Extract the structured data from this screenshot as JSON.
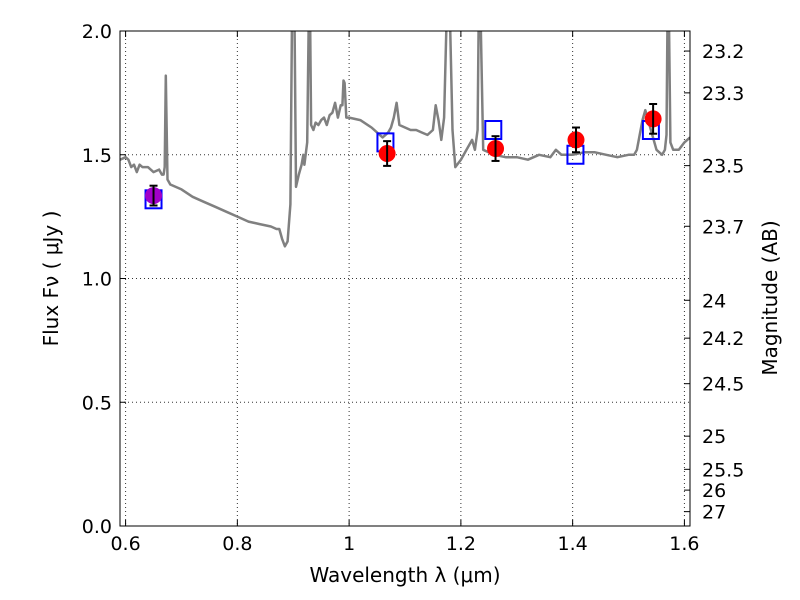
{
  "chart_data": {
    "type": "line",
    "title": "",
    "xlabel": "Wavelength  λ (μm)",
    "ylabel": "Flux  Fν  ( μJy )",
    "ylabel_right": "Magnitude (AB)",
    "xlim": [
      0.59,
      1.61
    ],
    "ylim": [
      0.0,
      2.0
    ],
    "grid": true,
    "x_ticks": [
      {
        "value": 0.6,
        "label": "0.6"
      },
      {
        "value": 0.8,
        "label": "0.8"
      },
      {
        "value": 1.0,
        "label": "1"
      },
      {
        "value": 1.2,
        "label": "1.2"
      },
      {
        "value": 1.4,
        "label": "1.4"
      },
      {
        "value": 1.6,
        "label": "1.6"
      }
    ],
    "y_ticks": [
      {
        "value": 0.0,
        "label": "0.0"
      },
      {
        "value": 0.5,
        "label": "0.5"
      },
      {
        "value": 1.0,
        "label": "1.0"
      },
      {
        "value": 1.5,
        "label": "1.5"
      },
      {
        "value": 2.0,
        "label": "2.0"
      }
    ],
    "mag_ticks": [
      {
        "label": "23.2",
        "flux": 1.919
      },
      {
        "label": "23.3",
        "flux": 1.75
      },
      {
        "label": "23.5",
        "flux": 1.456
      },
      {
        "label": "23.7",
        "flux": 1.211
      },
      {
        "label": "24",
        "flux": 0.912
      },
      {
        "label": "24.2",
        "flux": 0.759
      },
      {
        "label": "24.5",
        "flux": 0.575
      },
      {
        "label": "25",
        "flux": 0.363
      },
      {
        "label": "25.5",
        "flux": 0.229
      },
      {
        "label": "26",
        "flux": 0.145
      },
      {
        "label": "27",
        "flux": 0.058
      }
    ],
    "colors": {
      "spectrum": "#808080",
      "model_box": "#0000ff",
      "observed": "#ff0000",
      "observed_first": "#a000c8",
      "errorbar": "#000000"
    },
    "series": [
      {
        "kind": "spectrum",
        "x": [
          0.59,
          0.6,
          0.605,
          0.61,
          0.615,
          0.62,
          0.625,
          0.63,
          0.64,
          0.65,
          0.66,
          0.665,
          0.668,
          0.67,
          0.672,
          0.675,
          0.68,
          0.7,
          0.72,
          0.74,
          0.76,
          0.78,
          0.8,
          0.82,
          0.84,
          0.86,
          0.87,
          0.875,
          0.88,
          0.885,
          0.89,
          0.895,
          0.898,
          0.902,
          0.905,
          0.91,
          0.915,
          0.918,
          0.92,
          0.925,
          0.928,
          0.93,
          0.932,
          0.936,
          0.94,
          0.945,
          0.95,
          0.955,
          0.96,
          0.965,
          0.97,
          0.975,
          0.98,
          0.985,
          0.988,
          0.99,
          0.992,
          0.995,
          1.0,
          1.02,
          1.04,
          1.06,
          1.07,
          1.075,
          1.08,
          1.085,
          1.09,
          1.1,
          1.11,
          1.12,
          1.13,
          1.14,
          1.15,
          1.155,
          1.16,
          1.165,
          1.17,
          1.175,
          1.18,
          1.185,
          1.19,
          1.2,
          1.21,
          1.22,
          1.225,
          1.23,
          1.232,
          1.235,
          1.24,
          1.26,
          1.28,
          1.3,
          1.32,
          1.34,
          1.36,
          1.37,
          1.38,
          1.4,
          1.42,
          1.44,
          1.46,
          1.48,
          1.5,
          1.51,
          1.515,
          1.52,
          1.525,
          1.53,
          1.54,
          1.55,
          1.56,
          1.565,
          1.568,
          1.57,
          1.572,
          1.575,
          1.58,
          1.59,
          1.6,
          1.61
        ],
        "y": [
          1.48,
          1.49,
          1.48,
          1.45,
          1.46,
          1.43,
          1.46,
          1.45,
          1.45,
          1.43,
          1.44,
          1.42,
          1.42,
          1.45,
          1.82,
          1.4,
          1.38,
          1.36,
          1.33,
          1.31,
          1.29,
          1.27,
          1.25,
          1.23,
          1.22,
          1.21,
          1.2,
          1.2,
          1.16,
          1.13,
          1.15,
          1.3,
          2.1,
          2.1,
          1.37,
          1.42,
          1.46,
          1.5,
          1.46,
          1.55,
          2.1,
          2.1,
          1.62,
          1.6,
          1.63,
          1.62,
          1.64,
          1.65,
          1.62,
          1.66,
          1.67,
          1.71,
          1.65,
          1.7,
          1.7,
          1.8,
          1.79,
          1.65,
          1.65,
          1.64,
          1.61,
          1.57,
          1.59,
          1.61,
          1.65,
          1.71,
          1.62,
          1.61,
          1.6,
          1.6,
          1.59,
          1.58,
          1.6,
          1.7,
          1.64,
          1.56,
          1.65,
          2.1,
          2.1,
          1.6,
          1.45,
          1.48,
          1.52,
          1.56,
          1.52,
          1.6,
          2.1,
          2.1,
          1.52,
          1.5,
          1.49,
          1.49,
          1.48,
          1.5,
          1.49,
          1.52,
          1.5,
          1.5,
          1.51,
          1.51,
          1.5,
          1.49,
          1.5,
          1.5,
          1.52,
          1.58,
          1.64,
          1.68,
          1.6,
          1.52,
          1.5,
          1.52,
          1.58,
          2.1,
          2.1,
          1.55,
          1.52,
          1.52,
          1.55,
          1.57
        ]
      },
      {
        "kind": "model_boxes",
        "x": [
          0.65,
          1.065,
          1.258,
          1.405,
          1.54
        ],
        "y": [
          1.32,
          1.55,
          1.6,
          1.5,
          1.6
        ]
      },
      {
        "kind": "observed",
        "x": [
          0.65,
          1.068,
          1.262,
          1.406,
          1.544
        ],
        "y": [
          1.335,
          1.505,
          1.525,
          1.56,
          1.645
        ],
        "yerr": [
          0.04,
          0.05,
          0.05,
          0.05,
          0.06
        ]
      }
    ]
  }
}
